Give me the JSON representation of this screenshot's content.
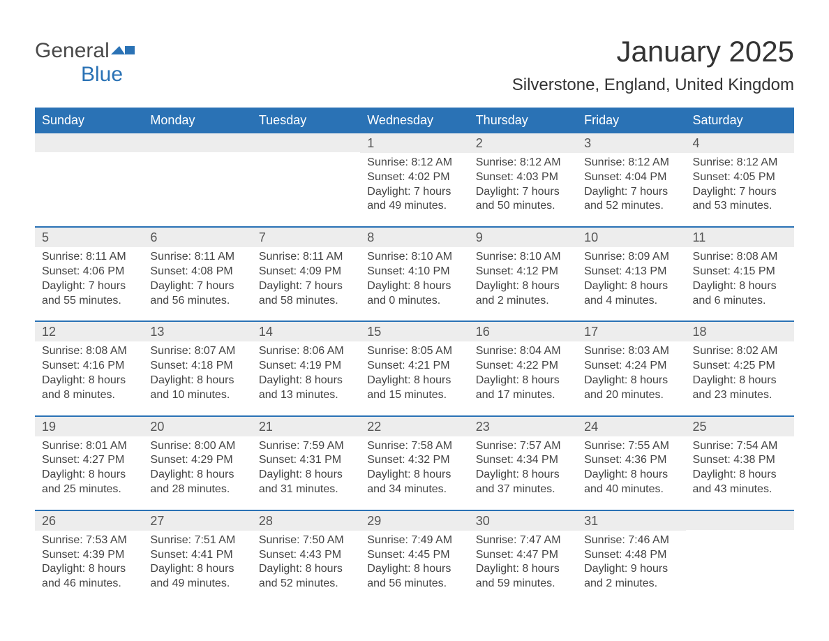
{
  "brand": {
    "general": "General",
    "blue": "Blue"
  },
  "logo_color": "#2a72b5",
  "title": "January 2025",
  "location": "Silverstone, England, United Kingdom",
  "header_bg": "#2a72b5",
  "header_text": "#ffffff",
  "daynum_bg": "#ededed",
  "divider_color": "#2a72b5",
  "weekdays": [
    "Sunday",
    "Monday",
    "Tuesday",
    "Wednesday",
    "Thursday",
    "Friday",
    "Saturday"
  ],
  "weeks": [
    [
      {
        "n": "",
        "sr": "",
        "ss": "",
        "dl": ""
      },
      {
        "n": "",
        "sr": "",
        "ss": "",
        "dl": ""
      },
      {
        "n": "",
        "sr": "",
        "ss": "",
        "dl": ""
      },
      {
        "n": "1",
        "sr": "8:12 AM",
        "ss": "4:02 PM",
        "dl": "7 hours and 49 minutes."
      },
      {
        "n": "2",
        "sr": "8:12 AM",
        "ss": "4:03 PM",
        "dl": "7 hours and 50 minutes."
      },
      {
        "n": "3",
        "sr": "8:12 AM",
        "ss": "4:04 PM",
        "dl": "7 hours and 52 minutes."
      },
      {
        "n": "4",
        "sr": "8:12 AM",
        "ss": "4:05 PM",
        "dl": "7 hours and 53 minutes."
      }
    ],
    [
      {
        "n": "5",
        "sr": "8:11 AM",
        "ss": "4:06 PM",
        "dl": "7 hours and 55 minutes."
      },
      {
        "n": "6",
        "sr": "8:11 AM",
        "ss": "4:08 PM",
        "dl": "7 hours and 56 minutes."
      },
      {
        "n": "7",
        "sr": "8:11 AM",
        "ss": "4:09 PM",
        "dl": "7 hours and 58 minutes."
      },
      {
        "n": "8",
        "sr": "8:10 AM",
        "ss": "4:10 PM",
        "dl": "8 hours and 0 minutes."
      },
      {
        "n": "9",
        "sr": "8:10 AM",
        "ss": "4:12 PM",
        "dl": "8 hours and 2 minutes."
      },
      {
        "n": "10",
        "sr": "8:09 AM",
        "ss": "4:13 PM",
        "dl": "8 hours and 4 minutes."
      },
      {
        "n": "11",
        "sr": "8:08 AM",
        "ss": "4:15 PM",
        "dl": "8 hours and 6 minutes."
      }
    ],
    [
      {
        "n": "12",
        "sr": "8:08 AM",
        "ss": "4:16 PM",
        "dl": "8 hours and 8 minutes."
      },
      {
        "n": "13",
        "sr": "8:07 AM",
        "ss": "4:18 PM",
        "dl": "8 hours and 10 minutes."
      },
      {
        "n": "14",
        "sr": "8:06 AM",
        "ss": "4:19 PM",
        "dl": "8 hours and 13 minutes."
      },
      {
        "n": "15",
        "sr": "8:05 AM",
        "ss": "4:21 PM",
        "dl": "8 hours and 15 minutes."
      },
      {
        "n": "16",
        "sr": "8:04 AM",
        "ss": "4:22 PM",
        "dl": "8 hours and 17 minutes."
      },
      {
        "n": "17",
        "sr": "8:03 AM",
        "ss": "4:24 PM",
        "dl": "8 hours and 20 minutes."
      },
      {
        "n": "18",
        "sr": "8:02 AM",
        "ss": "4:25 PM",
        "dl": "8 hours and 23 minutes."
      }
    ],
    [
      {
        "n": "19",
        "sr": "8:01 AM",
        "ss": "4:27 PM",
        "dl": "8 hours and 25 minutes."
      },
      {
        "n": "20",
        "sr": "8:00 AM",
        "ss": "4:29 PM",
        "dl": "8 hours and 28 minutes."
      },
      {
        "n": "21",
        "sr": "7:59 AM",
        "ss": "4:31 PM",
        "dl": "8 hours and 31 minutes."
      },
      {
        "n": "22",
        "sr": "7:58 AM",
        "ss": "4:32 PM",
        "dl": "8 hours and 34 minutes."
      },
      {
        "n": "23",
        "sr": "7:57 AM",
        "ss": "4:34 PM",
        "dl": "8 hours and 37 minutes."
      },
      {
        "n": "24",
        "sr": "7:55 AM",
        "ss": "4:36 PM",
        "dl": "8 hours and 40 minutes."
      },
      {
        "n": "25",
        "sr": "7:54 AM",
        "ss": "4:38 PM",
        "dl": "8 hours and 43 minutes."
      }
    ],
    [
      {
        "n": "26",
        "sr": "7:53 AM",
        "ss": "4:39 PM",
        "dl": "8 hours and 46 minutes."
      },
      {
        "n": "27",
        "sr": "7:51 AM",
        "ss": "4:41 PM",
        "dl": "8 hours and 49 minutes."
      },
      {
        "n": "28",
        "sr": "7:50 AM",
        "ss": "4:43 PM",
        "dl": "8 hours and 52 minutes."
      },
      {
        "n": "29",
        "sr": "7:49 AM",
        "ss": "4:45 PM",
        "dl": "8 hours and 56 minutes."
      },
      {
        "n": "30",
        "sr": "7:47 AM",
        "ss": "4:47 PM",
        "dl": "8 hours and 59 minutes."
      },
      {
        "n": "31",
        "sr": "7:46 AM",
        "ss": "4:48 PM",
        "dl": "9 hours and 2 minutes."
      },
      {
        "n": "",
        "sr": "",
        "ss": "",
        "dl": ""
      }
    ]
  ],
  "labels": {
    "sunrise": "Sunrise: ",
    "sunset": "Sunset: ",
    "daylight": "Daylight: "
  }
}
